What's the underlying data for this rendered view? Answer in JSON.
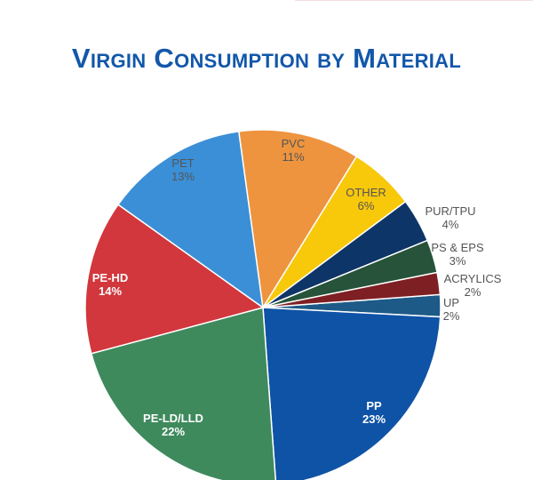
{
  "chart_data": {
    "type": "pie",
    "title": "Virgin Consumption by Material",
    "unit": "%",
    "start_angle_deg": -4.2,
    "direction": "clockwise",
    "slices": [
      {
        "label": "UP",
        "value": 2,
        "color": "#1d5a88"
      },
      {
        "label": "PP",
        "value": 23,
        "color": "#0f53a6"
      },
      {
        "label": "PE-LD/LLD",
        "value": 22,
        "color": "#3e8a5d"
      },
      {
        "label": "PE-HD",
        "value": 14,
        "color": "#d1373c"
      },
      {
        "label": "PET",
        "value": 13,
        "color": "#3b8fd6"
      },
      {
        "label": "PVC",
        "value": 11,
        "color": "#ee943e"
      },
      {
        "label": "OTHER",
        "value": 6,
        "color": "#f8c80b"
      },
      {
        "label": "PUR/TPU",
        "value": 4,
        "color": "#0e3567"
      },
      {
        "label": "PS & EPS",
        "value": 3,
        "color": "#265339"
      },
      {
        "label": "ACRYLICS",
        "value": 2,
        "color": "#7e1f23"
      }
    ],
    "value_labels": [
      "2%",
      "23%",
      "22%",
      "14%",
      "13%",
      "11%",
      "6%",
      "4%",
      "3%",
      "2%"
    ]
  }
}
